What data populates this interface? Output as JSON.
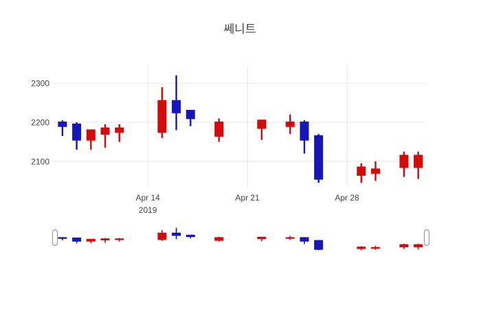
{
  "title": "쎄니트",
  "colors": {
    "increasing": "#d20a0a",
    "decreasing": "#1616bb",
    "grid": "#e6e6e6",
    "text": "#444444",
    "background": "#ffffff",
    "handle_border": "#9a9a9a",
    "handle_fill": "#ffffff"
  },
  "chart_data": {
    "type": "candlestick",
    "title": "쎄니트",
    "xlabel": "",
    "ylabel": "",
    "grid": true,
    "rangeslider": true,
    "ylim": [
      2035,
      2346
    ],
    "xlim_days": [
      -6.67,
      19.55
    ],
    "y_ticks": [
      2300,
      2200,
      2100
    ],
    "x_ticks": [
      {
        "day_offset": 0,
        "label": "Apr 14",
        "sublabel": "2019"
      },
      {
        "day_offset": 7,
        "label": "Apr 21",
        "sublabel": ""
      },
      {
        "day_offset": 14,
        "label": "Apr 28",
        "sublabel": ""
      }
    ],
    "candles": [
      {
        "date": "2019-04-08",
        "day_offset": -6,
        "open": 2200,
        "high": 2205,
        "low": 2165,
        "close": 2190
      },
      {
        "date": "2019-04-09",
        "day_offset": -5,
        "open": 2195,
        "high": 2200,
        "low": 2130,
        "close": 2155
      },
      {
        "date": "2019-04-10",
        "day_offset": -4,
        "open": 2155,
        "high": 2180,
        "low": 2130,
        "close": 2180
      },
      {
        "date": "2019-04-11",
        "day_offset": -3,
        "open": 2170,
        "high": 2195,
        "low": 2135,
        "close": 2185
      },
      {
        "date": "2019-04-12",
        "day_offset": -2,
        "open": 2175,
        "high": 2195,
        "low": 2150,
        "close": 2185
      },
      {
        "date": "2019-04-15",
        "day_offset": 1,
        "open": 2175,
        "high": 2290,
        "low": 2160,
        "close": 2255
      },
      {
        "date": "2019-04-16",
        "day_offset": 2,
        "open": 2255,
        "high": 2320,
        "low": 2180,
        "close": 2225
      },
      {
        "date": "2019-04-17",
        "day_offset": 3,
        "open": 2230,
        "high": 2230,
        "low": 2190,
        "close": 2210
      },
      {
        "date": "2019-04-19",
        "day_offset": 5,
        "open": 2165,
        "high": 2210,
        "low": 2150,
        "close": 2200
      },
      {
        "date": "2019-04-22",
        "day_offset": 8,
        "open": 2185,
        "high": 2205,
        "low": 2155,
        "close": 2205
      },
      {
        "date": "2019-04-24",
        "day_offset": 10,
        "open": 2190,
        "high": 2220,
        "low": 2170,
        "close": 2200
      },
      {
        "date": "2019-04-25",
        "day_offset": 11,
        "open": 2200,
        "high": 2205,
        "low": 2120,
        "close": 2155
      },
      {
        "date": "2019-04-26",
        "day_offset": 12,
        "open": 2165,
        "high": 2170,
        "low": 2045,
        "close": 2055
      },
      {
        "date": "2019-04-29",
        "day_offset": 15,
        "open": 2065,
        "high": 2095,
        "low": 2045,
        "close": 2085
      },
      {
        "date": "2019-04-30",
        "day_offset": 16,
        "open": 2070,
        "high": 2100,
        "low": 2050,
        "close": 2080
      },
      {
        "date": "2019-05-02",
        "day_offset": 18,
        "open": 2085,
        "high": 2125,
        "low": 2060,
        "close": 2115
      },
      {
        "date": "2019-05-03",
        "day_offset": 19,
        "open": 2085,
        "high": 2125,
        "low": 2055,
        "close": 2115
      }
    ]
  }
}
